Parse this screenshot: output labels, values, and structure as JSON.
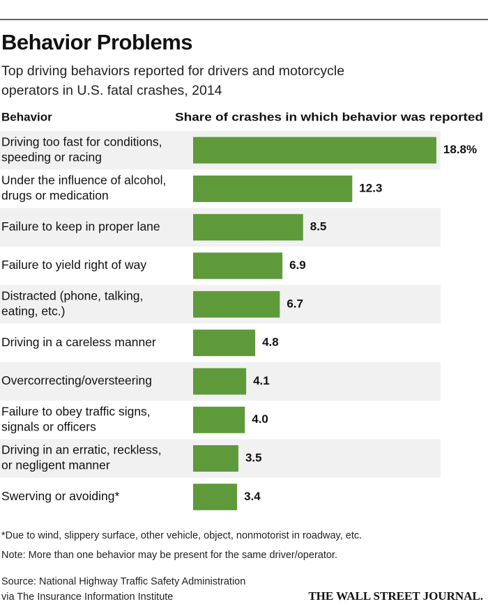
{
  "chart_data": {
    "type": "bar",
    "orientation": "horizontal",
    "title": "Behavior Problems",
    "subtitle": [
      "Top driving behaviors reported for drivers and motorcycle",
      "operators in U.S. fatal crashes, 2014"
    ],
    "category_header": "Behavior",
    "value_header": "Share of crashes in which behavior was reported",
    "categories": [
      [
        "Driving too fast for conditions,",
        "speeding or racing"
      ],
      [
        "Under the influence of alcohol,",
        "drugs or medication"
      ],
      [
        "Failure to keep in proper lane"
      ],
      [
        "Failure to yield right of way"
      ],
      [
        "Distracted (phone, talking,",
        "eating, etc.)"
      ],
      [
        "Driving in a careless manner"
      ],
      [
        "Overcorrecting/oversteering"
      ],
      [
        "Failure to obey traffic signs,",
        "signals or officers"
      ],
      [
        "Driving in an erratic, reckless,",
        "or negligent manner"
      ],
      [
        "Swerving or avoiding*"
      ]
    ],
    "values": [
      18.8,
      12.3,
      8.5,
      6.9,
      6.7,
      4.8,
      4.1,
      4.0,
      3.5,
      3.4
    ],
    "value_labels": [
      "18.8%",
      "12.3",
      "8.5",
      "6.9",
      "6.7",
      "4.8",
      "4.1",
      "4.0",
      "3.5",
      "3.4"
    ],
    "color": "#5f9a3a",
    "footnotes": [
      "*Due to wind, slippery surface, other vehicle, object, nonmotorist in roadway, etc.",
      "Note: More than one behavior may be present for the same driver/operator."
    ],
    "source": [
      "Source: National Highway Traffic Safety Administration",
      "via The Insurance Information Institute"
    ],
    "credit": "THE WALL STREET JOURNAL."
  }
}
